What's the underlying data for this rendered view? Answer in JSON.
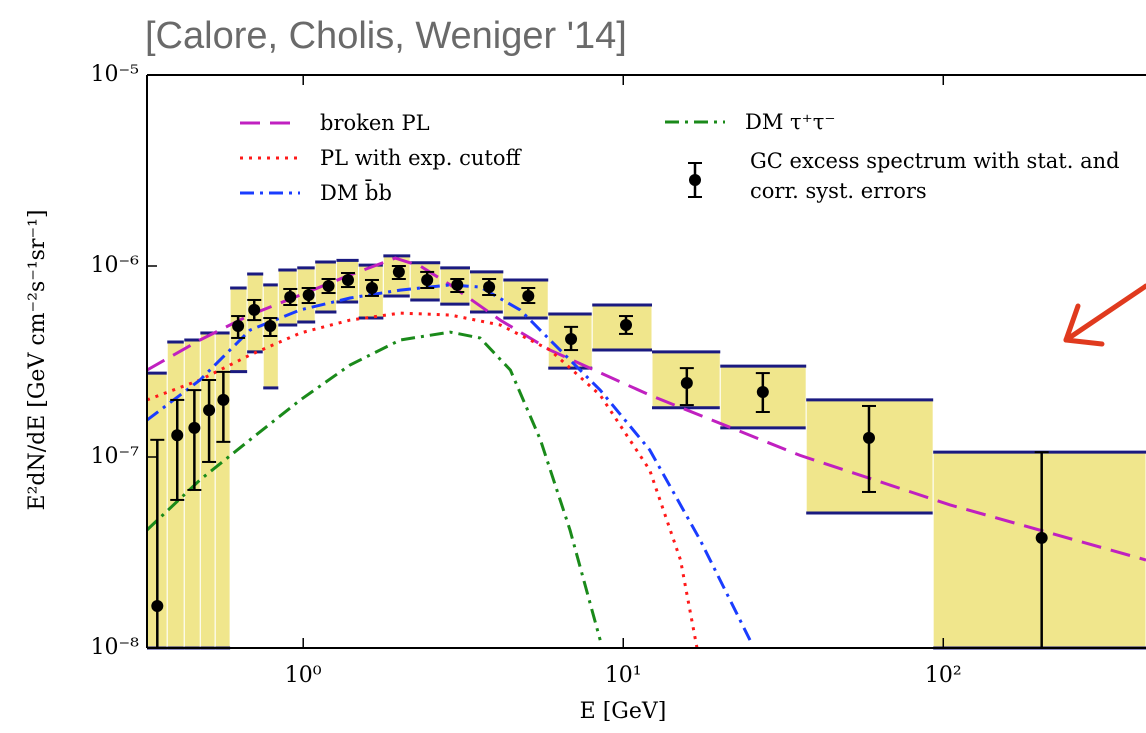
{
  "chart_data": {
    "type": "scatter",
    "title": "[Calore, Cholis, Weniger '14]",
    "x_label": "E [GeV]",
    "y_label": "E²dN/dE [GeV cm⁻²s⁻¹sr⁻¹]",
    "log_x": true,
    "log_y": true,
    "xlim": [
      0.325,
      430
    ],
    "ylim": [
      1e-08,
      1e-05
    ],
    "xticks": [
      {
        "value": 1,
        "label": "10⁰"
      },
      {
        "value": 10,
        "label": "10¹"
      },
      {
        "value": 100,
        "label": "10²"
      }
    ],
    "yticks": [
      {
        "value": 1e-08,
        "label": "10⁻⁸"
      },
      {
        "value": 1e-07,
        "label": "10⁻⁷"
      },
      {
        "value": 1e-06,
        "label": "10⁻⁶"
      },
      {
        "value": 1e-05,
        "label": "10⁻⁵"
      }
    ],
    "bins": {
      "color": "#f0e68c",
      "edge_color": "#1a1a80",
      "edges": [
        0.325,
        0.376,
        0.425,
        0.477,
        0.531,
        0.591,
        0.668,
        0.75,
        0.836,
        0.958,
        1.09,
        1.27,
        1.49,
        1.78,
        2.16,
        2.68,
        3.32,
        4.22,
        5.83,
        8.0,
        12.3,
        20.1,
        37.3,
        93,
        430
      ],
      "band_low": [
        1e-08,
        1e-08,
        1e-08,
        1e-08,
        1e-08,
        2.8e-07,
        3.55e-07,
        2.3e-07,
        4.91e-07,
        5.09e-07,
        5.74e-07,
        6.48e-07,
        5.34e-07,
        6.97e-07,
        6.64e-07,
        6.32e-07,
        5.74e-07,
        5.34e-07,
        2.92e-07,
        3.63e-07,
        1.81e-07,
        1.42e-07,
        5.09e-08,
        1e-08
      ],
      "band_high": [
        2.75e-07,
        4e-07,
        4.1e-07,
        4.46e-07,
        4.46e-07,
        7.67e-07,
        9.08e-07,
        7.96e-07,
        9.53e-07,
        9.77e-07,
        1.05e-06,
        1.07e-06,
        1.01e-06,
        1.13e-06,
        1.04e-06,
        9.77e-07,
        9.31e-07,
        8.45e-07,
        5.61e-07,
        6.25e-07,
        3.55e-07,
        2.99e-07,
        1.99e-07,
        1.06e-07
      ]
    },
    "points": {
      "name": "GC excess spectrum with stat. and corr. syst. errors",
      "color": "#000000",
      "x": [
        0.35,
        0.404,
        0.457,
        0.508,
        0.563,
        0.626,
        0.703,
        0.789,
        0.911,
        1.04,
        1.2,
        1.38,
        1.64,
        1.99,
        2.44,
        3.03,
        3.81,
        5.05,
        6.87,
        10.2,
        15.8,
        27.3,
        58.6,
        203
      ],
      "values": [
        1.66e-08,
        1.3e-07,
        1.42e-07,
        1.76e-07,
        1.99e-07,
        4.85e-07,
        5.89e-07,
        4.85e-07,
        6.88e-07,
        7.05e-07,
        7.86e-07,
        8.45e-07,
        7.67e-07,
        9.31e-07,
        8.45e-07,
        7.96e-07,
        7.76e-07,
        6.97e-07,
        4.15e-07,
        4.91e-07,
        2.44e-07,
        2.19e-07,
        1.26e-07,
        3.77e-08
      ],
      "lower": [
        1e-08,
        5.96e-08,
        6.72e-08,
        9.42e-08,
        1.2e-07,
        4.2e-07,
        5.21e-07,
        4.3e-07,
        6.25e-07,
        6.4e-07,
        7.22e-07,
        7.76e-07,
        6.97e-07,
        8.55e-07,
        7.67e-07,
        7.31e-07,
        7.05e-07,
        6.4e-07,
        3.63e-07,
        4.41e-07,
        1.87e-07,
        1.72e-07,
        6.56e-08,
        1e-08
      ],
      "upper": [
        1.23e-07,
        1.99e-07,
        2.24e-07,
        2.53e-07,
        2.79e-07,
        5.47e-07,
        6.64e-07,
        5.34e-07,
        7.58e-07,
        7.67e-07,
        8.55e-07,
        9.19e-07,
        8.45e-07,
        1e-06,
        9.31e-07,
        8.55e-07,
        8.55e-07,
        7.67e-07,
        4.8e-07,
        5.47e-07,
        2.92e-07,
        2.75e-07,
        1.85e-07,
        1.06e-07
      ]
    },
    "series": [
      {
        "name": "broken PL",
        "color": "#c020c0",
        "dash": "dashed",
        "x": [
          0.325,
          0.476,
          0.682,
          0.98,
          1.4,
          1.94,
          2.32,
          2.88,
          4.13,
          5.91,
          12.1,
          35.7,
          105,
          430
        ],
        "values": [
          2.85e-07,
          4.1e-07,
          5.54e-07,
          7.05e-07,
          8.97e-07,
          1.1e-06,
          1e-06,
          7.96e-07,
          5.21e-07,
          3.63e-07,
          2.11e-07,
          1.02e-07,
          5.61e-08,
          2.89e-08
        ]
      },
      {
        "name": "PL with exp. cutoff",
        "color": "#ff1a1a",
        "dash": "dotted",
        "x": [
          0.325,
          0.476,
          0.682,
          0.98,
          1.4,
          2.01,
          2.88,
          4.13,
          5.91,
          8.47,
          12.1,
          15.1,
          17.0
        ],
        "values": [
          1.99e-07,
          2.53e-07,
          3.42e-07,
          4.46e-07,
          5.21e-07,
          5.67e-07,
          5.54e-07,
          4.91e-07,
          3.63e-07,
          2.11e-07,
          8.55e-08,
          2.89e-08,
          1e-08
        ]
      },
      {
        "name": "DM b̄b",
        "color": "#1a3cff",
        "dash": "dashdot",
        "x": [
          0.325,
          0.476,
          0.682,
          0.98,
          1.4,
          2.01,
          2.88,
          3.57,
          4.76,
          6.35,
          8.47,
          12.1,
          17.4,
          24.9
        ],
        "values": [
          1.56e-07,
          2.53e-07,
          4.62e-07,
          5.89e-07,
          6.8e-07,
          7.48e-07,
          7.96e-07,
          7.76e-07,
          5.89e-07,
          3.63e-07,
          2.24e-07,
          1.09e-07,
          3.67e-08,
          1.1e-08
        ]
      },
      {
        "name": "DM τ⁺τ⁻",
        "color": "#1a8a1a",
        "dash": "dashdot",
        "x": [
          0.325,
          0.476,
          0.682,
          0.98,
          1.4,
          2.01,
          2.88,
          3.57,
          4.44,
          5.51,
          6.82,
          8.47
        ],
        "values": [
          4.15e-08,
          7.59e-08,
          1.23e-07,
          1.99e-07,
          3.03e-07,
          4.1e-07,
          4.51e-07,
          4.2e-07,
          2.85e-07,
          1.23e-07,
          4.15e-08,
          1.1e-08
        ]
      }
    ]
  }
}
